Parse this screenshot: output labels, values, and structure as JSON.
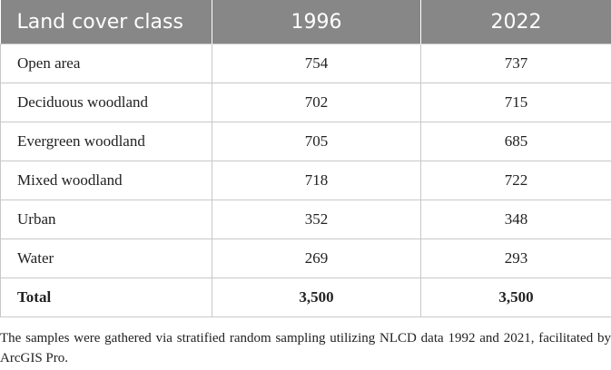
{
  "table": {
    "header": [
      "Land cover class",
      "1996",
      "2022"
    ],
    "rows": [
      [
        "Open area",
        "754",
        "737"
      ],
      [
        "Deciduous woodland",
        "702",
        "715"
      ],
      [
        "Evergreen woodland",
        "705",
        "685"
      ],
      [
        "Mixed woodland",
        "718",
        "722"
      ],
      [
        "Urban",
        "352",
        "348"
      ],
      [
        "Water",
        "269",
        "293"
      ],
      [
        "Total",
        "3,500",
        "3,500"
      ]
    ]
  },
  "footnote": "The samples were gathered via stratified random sampling utilizing NLCD data 1992 and 2021, facilitated by ArcGIS Pro."
}
